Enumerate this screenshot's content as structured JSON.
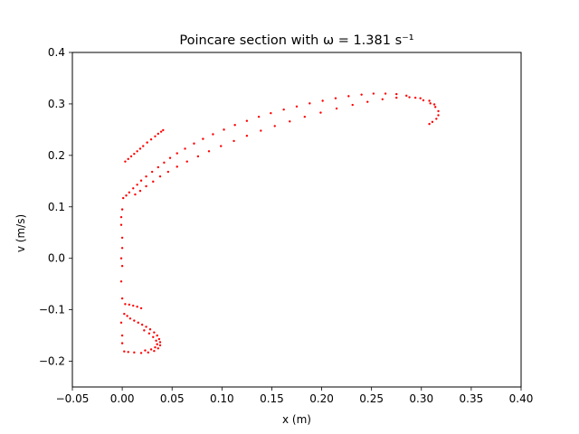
{
  "chart_data": {
    "type": "scatter",
    "title": "Poincare section with ω = 1.381 s⁻¹",
    "xlabel": "x (m)",
    "ylabel": "v (m/s)",
    "xlim": [
      -0.05,
      0.4
    ],
    "ylim": [
      -0.25,
      0.4
    ],
    "xticks": [
      -0.05,
      0.0,
      0.05,
      0.1,
      0.15,
      0.2,
      0.25,
      0.3,
      0.35,
      0.4
    ],
    "xtick_labels": [
      "−0.05",
      "0.00",
      "0.05",
      "0.10",
      "0.15",
      "0.20",
      "0.25",
      "0.30",
      "0.35",
      "0.40"
    ],
    "yticks": [
      -0.2,
      -0.1,
      0.0,
      0.1,
      0.2,
      0.3,
      0.4
    ],
    "ytick_labels": [
      "−0.2",
      "−0.1",
      "0.0",
      "0.1",
      "0.2",
      "0.3",
      "0.4"
    ],
    "grid": false,
    "marker_color": "#ff0000",
    "series": [
      {
        "values_xy": [
          [
            0.003,
            0.188
          ],
          [
            0.006,
            0.193
          ],
          [
            0.009,
            0.198
          ],
          [
            0.012,
            0.203
          ],
          [
            0.015,
            0.208
          ],
          [
            0.018,
            0.213
          ],
          [
            0.021,
            0.218
          ],
          [
            0.025,
            0.225
          ],
          [
            0.029,
            0.231
          ],
          [
            0.033,
            0.237
          ],
          [
            0.036,
            0.242
          ],
          [
            0.039,
            0.246
          ],
          [
            0.041,
            0.249
          ],
          [
            0.001,
            0.117
          ],
          [
            0.004,
            0.122
          ],
          [
            0.007,
            0.128
          ],
          [
            0.011,
            0.136
          ],
          [
            0.015,
            0.143
          ],
          [
            0.019,
            0.151
          ],
          [
            0.024,
            0.159
          ],
          [
            0.03,
            0.168
          ],
          [
            0.036,
            0.177
          ],
          [
            0.042,
            0.186
          ],
          [
            0.048,
            0.195
          ],
          [
            0.055,
            0.204
          ],
          [
            0.063,
            0.213
          ],
          [
            0.072,
            0.223
          ],
          [
            0.081,
            0.232
          ],
          [
            0.091,
            0.241
          ],
          [
            0.102,
            0.25
          ],
          [
            0.113,
            0.259
          ],
          [
            0.125,
            0.267
          ],
          [
            0.137,
            0.275
          ],
          [
            0.149,
            0.282
          ],
          [
            0.162,
            0.289
          ],
          [
            0.175,
            0.295
          ],
          [
            0.188,
            0.301
          ],
          [
            0.201,
            0.306
          ],
          [
            0.214,
            0.311
          ],
          [
            0.227,
            0.315
          ],
          [
            0.24,
            0.318
          ],
          [
            0.252,
            0.32
          ],
          [
            0.264,
            0.32
          ],
          [
            0.275,
            0.319
          ],
          [
            0.285,
            0.316
          ],
          [
            0.294,
            0.312
          ],
          [
            0.302,
            0.307
          ],
          [
            0.309,
            0.301
          ],
          [
            0.314,
            0.294
          ],
          [
            0.317,
            0.286
          ],
          [
            0.317,
            0.278
          ],
          [
            0.315,
            0.271
          ],
          [
            0.311,
            0.265
          ],
          [
            0.308,
            0.261
          ],
          [
            0.013,
            0.124
          ],
          [
            0.018,
            0.131
          ],
          [
            0.024,
            0.14
          ],
          [
            0.031,
            0.149
          ],
          [
            0.038,
            0.159
          ],
          [
            0.046,
            0.168
          ],
          [
            0.055,
            0.178
          ],
          [
            0.065,
            0.188
          ],
          [
            0.076,
            0.198
          ],
          [
            0.087,
            0.208
          ],
          [
            0.099,
            0.218
          ],
          [
            0.112,
            0.228
          ],
          [
            0.125,
            0.238
          ],
          [
            0.139,
            0.248
          ],
          [
            0.153,
            0.257
          ],
          [
            0.168,
            0.266
          ],
          [
            0.183,
            0.275
          ],
          [
            0.199,
            0.283
          ],
          [
            0.215,
            0.291
          ],
          [
            0.231,
            0.298
          ],
          [
            0.246,
            0.304
          ],
          [
            0.261,
            0.309
          ],
          [
            0.275,
            0.312
          ],
          [
            0.288,
            0.313
          ],
          [
            0.299,
            0.311
          ],
          [
            0.308,
            0.306
          ],
          [
            0.313,
            0.299
          ],
          [
            0.0,
            0.095
          ],
          [
            -0.001,
            0.08
          ],
          [
            -0.001,
            0.065
          ],
          [
            0.0,
            0.04
          ],
          [
            0.0,
            0.02
          ],
          [
            -0.001,
            0.0
          ],
          [
            0.0,
            -0.015
          ],
          [
            -0.001,
            -0.045
          ],
          [
            0.0,
            -0.078
          ],
          [
            -0.001,
            -0.125
          ],
          [
            0.0,
            -0.15
          ],
          [
            0.0,
            -0.165
          ],
          [
            0.003,
            -0.089
          ],
          [
            0.007,
            -0.09
          ],
          [
            0.011,
            -0.092
          ],
          [
            0.015,
            -0.094
          ],
          [
            0.019,
            -0.097
          ],
          [
            0.002,
            -0.108
          ],
          [
            0.005,
            -0.112
          ],
          [
            0.008,
            -0.117
          ],
          [
            0.012,
            -0.121
          ],
          [
            0.016,
            -0.125
          ],
          [
            0.02,
            -0.129
          ],
          [
            0.024,
            -0.133
          ],
          [
            0.028,
            -0.138
          ],
          [
            0.032,
            -0.144
          ],
          [
            0.035,
            -0.15
          ],
          [
            0.037,
            -0.157
          ],
          [
            0.038,
            -0.163
          ],
          [
            0.038,
            -0.169
          ],
          [
            0.036,
            -0.175
          ],
          [
            0.032,
            -0.18
          ],
          [
            0.026,
            -0.183
          ],
          [
            0.019,
            -0.184
          ],
          [
            0.012,
            -0.183
          ],
          [
            0.006,
            -0.182
          ],
          [
            0.002,
            -0.181
          ],
          [
            0.022,
            -0.14
          ],
          [
            0.027,
            -0.146
          ],
          [
            0.031,
            -0.153
          ],
          [
            0.034,
            -0.16
          ],
          [
            0.035,
            -0.167
          ],
          [
            0.033,
            -0.173
          ],
          [
            0.029,
            -0.177
          ],
          [
            0.023,
            -0.179
          ]
        ]
      }
    ]
  }
}
